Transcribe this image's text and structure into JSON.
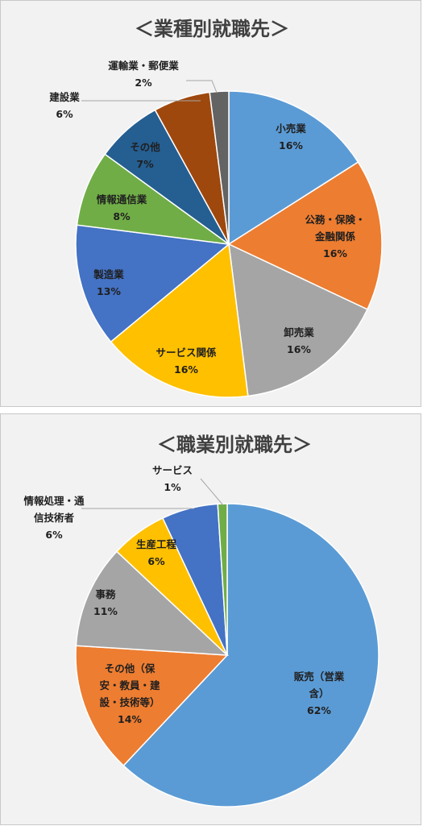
{
  "chart_data": [
    {
      "type": "pie",
      "title": "＜業種別就職先＞",
      "categories": [
        "小売業",
        "公務・保険・金融関係",
        "卸売業",
        "サービス関係",
        "製造業",
        "情報通信業",
        "その他",
        "建設業",
        "運輸業・郵便業"
      ],
      "values": [
        16,
        16,
        16,
        16,
        13,
        8,
        7,
        6,
        2
      ],
      "value_labels": [
        "16%",
        "16%",
        "16%",
        "16%",
        "13%",
        "8%",
        "7%",
        "6%",
        "2%"
      ],
      "label_lines": [
        [
          "小売業"
        ],
        [
          "公務・保険・",
          "金融関係"
        ],
        [
          "卸売業"
        ],
        [
          "サービス関係"
        ],
        [
          "製造業"
        ],
        [
          "情報通信業"
        ],
        [
          "その他"
        ],
        [
          "建設業"
        ],
        [
          "運輸業・郵便業"
        ]
      ],
      "colors": [
        "#5b9bd5",
        "#ed7d31",
        "#a5a5a5",
        "#ffc000",
        "#4472c4",
        "#70ad47",
        "#255e91",
        "#9e480e",
        "#636363"
      ],
      "start_angle_deg": 0,
      "direction": "clockwise"
    },
    {
      "type": "pie",
      "title": "＜職業別就職先＞",
      "categories": [
        "販売（営業含）",
        "その他（保安・教員・建設・技術等）",
        "事務",
        "生産工程",
        "情報処理・通信技術者",
        "サービス"
      ],
      "values": [
        62,
        14,
        11,
        6,
        6,
        1
      ],
      "value_labels": [
        "62%",
        "14%",
        "11%",
        "6%",
        "6%",
        "1%"
      ],
      "label_lines": [
        [
          "販売（営業",
          "含）"
        ],
        [
          "その他（保",
          "安・教員・建",
          "設・技術等）"
        ],
        [
          "事務"
        ],
        [
          "生産工程"
        ],
        [
          "情報処理・通",
          "信技術者"
        ],
        [
          "サービス"
        ]
      ],
      "colors": [
        "#5b9bd5",
        "#ed7d31",
        "#a5a5a5",
        "#ffc000",
        "#4472c4",
        "#70ad47"
      ],
      "start_angle_deg": 0,
      "direction": "clockwise"
    }
  ]
}
